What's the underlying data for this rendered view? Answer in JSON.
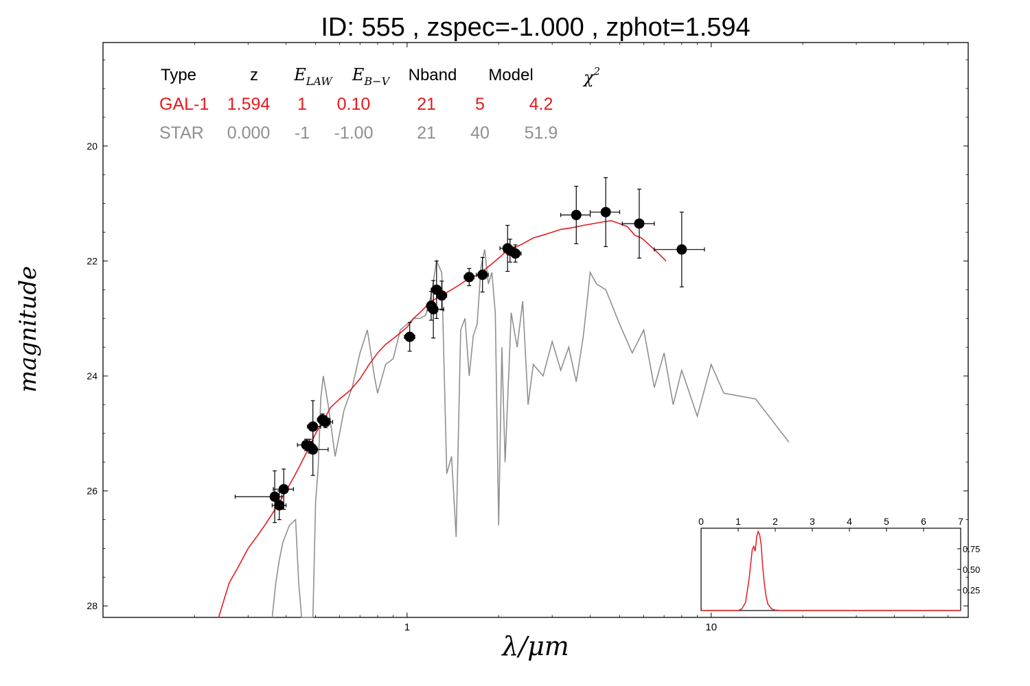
{
  "chart_data": [
    {
      "type": "scatter",
      "title": "ID:  555   , zspec=-1.000 , zphot=1.594",
      "xlabel": "λ/μm",
      "ylabel": "magnitude",
      "x_scale": "log",
      "y_inverted": true,
      "xlim": [
        0.1,
        70
      ],
      "ylim": [
        28.2,
        18.2
      ],
      "x_ticks": [
        1,
        10
      ],
      "x_tick_labels": [
        "1",
        "10"
      ],
      "y_ticks": [
        20,
        22,
        24,
        26,
        28
      ],
      "y_tick_labels": [
        "20",
        "22",
        "24",
        "26",
        "28"
      ],
      "colors": {
        "galaxy": "#e8181d",
        "star": "#8f8f8f",
        "points": "#000000"
      },
      "fit_table": {
        "header": [
          "Type",
          "z",
          "E_LAW",
          "E_B−V",
          "Nband",
          "Model",
          "χ²"
        ],
        "rows": [
          {
            "name": "galaxy",
            "values": [
              "GAL-1",
              "1.594",
              "1",
              "0.10",
              "21",
              "5",
              "4.2"
            ]
          },
          {
            "name": "star",
            "values": [
              "STAR",
              "0.000",
              "-1",
              "-1.00",
              "21",
              "40",
              "51.9"
            ]
          }
        ]
      },
      "photometry": [
        {
          "x": 0.367,
          "y": 26.1,
          "xerr": [
            0.095,
            0.02
          ],
          "yerr": [
            0.45,
            0.45
          ]
        },
        {
          "x": 0.38,
          "y": 26.25,
          "xerr": [
            0.02,
            0.02
          ],
          "yerr": [
            0.25,
            0.25
          ]
        },
        {
          "x": 0.393,
          "y": 25.97,
          "xerr": [
            0.03,
            0.03
          ],
          "yerr": [
            0.35,
            0.35
          ]
        },
        {
          "x": 0.466,
          "y": 25.2,
          "xerr": [
            0.03,
            0.02
          ],
          "yerr": [
            0.1,
            0.1
          ]
        },
        {
          "x": 0.478,
          "y": 25.22,
          "xerr": [
            0.02,
            0.02
          ],
          "yerr": [
            0.12,
            0.12
          ]
        },
        {
          "x": 0.49,
          "y": 25.28,
          "xerr": [
            0.02,
            0.06
          ],
          "yerr": [
            0.45,
            0.45
          ]
        },
        {
          "x": 0.49,
          "y": 24.88,
          "xerr": [
            0.02,
            0.03
          ],
          "yerr": [
            0.45,
            0.45
          ]
        },
        {
          "x": 0.527,
          "y": 24.76,
          "xerr": [
            0.02,
            0.03
          ],
          "yerr": [
            0.1,
            0.1
          ]
        },
        {
          "x": 0.539,
          "y": 24.8,
          "xerr": [
            0.02,
            0.03
          ],
          "yerr": [
            0.1,
            0.1
          ]
        },
        {
          "x": 1.02,
          "y": 23.32,
          "xerr": [
            0.04,
            0.04
          ],
          "yerr": [
            0.25,
            0.25
          ]
        },
        {
          "x": 1.2,
          "y": 22.78,
          "xerr": [
            0.03,
            0.03
          ],
          "yerr": [
            0.25,
            0.25
          ]
        },
        {
          "x": 1.22,
          "y": 22.84,
          "xerr": [
            0.05,
            0.1
          ],
          "yerr": [
            0.5,
            0.5
          ]
        },
        {
          "x": 1.25,
          "y": 22.5,
          "xerr": [
            0.05,
            0.05
          ],
          "yerr": [
            0.5,
            0.5
          ]
        },
        {
          "x": 1.3,
          "y": 22.6,
          "xerr": [
            0.05,
            0.05
          ],
          "yerr": [
            0.25,
            0.25
          ]
        },
        {
          "x": 1.6,
          "y": 22.28,
          "xerr": [
            0.06,
            0.06
          ],
          "yerr": [
            0.15,
            0.15
          ]
        },
        {
          "x": 1.77,
          "y": 22.24,
          "xerr": [
            0.08,
            0.08
          ],
          "yerr": [
            0.3,
            0.3
          ]
        },
        {
          "x": 2.14,
          "y": 21.78,
          "xerr": [
            0.12,
            0.12
          ],
          "yerr": [
            0.4,
            0.4
          ]
        },
        {
          "x": 2.18,
          "y": 21.82,
          "xerr": [
            0.1,
            0.1
          ],
          "yerr": [
            0.2,
            0.2
          ]
        },
        {
          "x": 2.27,
          "y": 21.87,
          "xerr": [
            0.1,
            0.1
          ],
          "yerr": [
            0.15,
            0.15
          ]
        },
        {
          "x": 3.6,
          "y": 21.2,
          "xerr": [
            0.4,
            0.4
          ],
          "yerr": [
            0.5,
            0.5
          ]
        },
        {
          "x": 4.5,
          "y": 21.15,
          "xerr": [
            0.5,
            0.5
          ],
          "yerr": [
            0.6,
            0.6
          ]
        },
        {
          "x": 5.8,
          "y": 21.35,
          "xerr": [
            0.7,
            0.7
          ],
          "yerr": [
            0.6,
            0.6
          ]
        },
        {
          "x": 8.0,
          "y": 21.8,
          "xerr": [
            1.5,
            1.5
          ],
          "yerr": [
            0.65,
            0.65
          ]
        }
      ],
      "series": [
        {
          "name": "GAL-1",
          "type": "line",
          "x": [
            0.24,
            0.26,
            0.28,
            0.3,
            0.32,
            0.34,
            0.36,
            0.38,
            0.4,
            0.42,
            0.44,
            0.46,
            0.48,
            0.5,
            0.52,
            0.54,
            0.56,
            0.6,
            0.65,
            0.7,
            0.75,
            0.8,
            0.85,
            0.9,
            0.95,
            1.0,
            1.05,
            1.1,
            1.15,
            1.2,
            1.3,
            1.4,
            1.5,
            1.6,
            1.7,
            1.8,
            1.9,
            2.0,
            2.1,
            2.2,
            2.4,
            2.6,
            2.8,
            3.0,
            3.2,
            3.5,
            3.8,
            4.1,
            4.4,
            4.7,
            5.0,
            5.3,
            5.6,
            5.9,
            6.2,
            6.5,
            6.8,
            7.1
          ],
          "y": [
            28.2,
            27.6,
            27.3,
            27.0,
            26.8,
            26.6,
            26.4,
            26.2,
            26.0,
            25.8,
            25.6,
            25.4,
            25.2,
            25.0,
            24.85,
            24.7,
            24.55,
            24.4,
            24.25,
            24.05,
            23.8,
            23.6,
            23.45,
            23.35,
            23.25,
            23.15,
            23.0,
            22.9,
            22.8,
            22.7,
            22.6,
            22.5,
            22.4,
            22.3,
            22.25,
            22.15,
            22.05,
            21.95,
            21.85,
            21.8,
            21.7,
            21.6,
            21.55,
            21.5,
            21.45,
            21.42,
            21.38,
            21.35,
            21.32,
            21.3,
            21.35,
            21.4,
            21.55,
            21.6,
            21.7,
            21.8,
            21.9,
            22.0
          ]
        },
        {
          "name": "STAR",
          "type": "line",
          "x": [
            0.36,
            0.37,
            0.38,
            0.39,
            0.4,
            0.41,
            0.42,
            0.43,
            0.44,
            0.45,
            0.47,
            0.49,
            0.5,
            0.51,
            0.52,
            0.53,
            0.55,
            0.58,
            0.62,
            0.66,
            0.7,
            0.74,
            0.78,
            0.8,
            0.85,
            0.9,
            0.95,
            1.0,
            1.05,
            1.1,
            1.15,
            1.2,
            1.25,
            1.3,
            1.35,
            1.4,
            1.45,
            1.5,
            1.55,
            1.6,
            1.65,
            1.7,
            1.75,
            1.8,
            1.85,
            1.9,
            1.95,
            2.0,
            2.05,
            2.1,
            2.2,
            2.3,
            2.4,
            2.5,
            2.6,
            2.8,
            3.0,
            3.2,
            3.4,
            3.6,
            3.8,
            4.0,
            4.2,
            4.5,
            5.0,
            5.5,
            6.0,
            6.5,
            7.0,
            7.5,
            8.0,
            9.0,
            10.0,
            11.0,
            14.0,
            18.0
          ],
          "y": [
            28.2,
            27.6,
            27.2,
            26.9,
            26.75,
            26.6,
            26.55,
            26.5,
            27.6,
            28.2,
            28.2,
            28.2,
            26.2,
            25.6,
            24.4,
            24.0,
            24.5,
            25.4,
            24.6,
            24.2,
            23.6,
            23.2,
            24.0,
            24.3,
            23.8,
            23.7,
            23.2,
            23.1,
            23.0,
            23.0,
            22.95,
            22.6,
            22.0,
            22.2,
            25.7,
            25.4,
            26.8,
            23.2,
            23.0,
            24.0,
            23.3,
            23.1,
            22.1,
            21.8,
            22.4,
            22.2,
            22.9,
            26.6,
            23.5,
            25.5,
            22.9,
            23.5,
            22.7,
            24.5,
            23.8,
            24.0,
            23.4,
            23.9,
            23.5,
            24.1,
            23.3,
            22.2,
            22.4,
            22.5,
            23.1,
            23.6,
            23.2,
            24.2,
            23.6,
            24.5,
            23.9,
            24.7,
            23.8,
            24.3,
            24.4,
            25.15
          ]
        }
      ]
    },
    {
      "type": "line",
      "title": "",
      "xlim": [
        0,
        7
      ],
      "ylim": [
        0,
        1
      ],
      "x_ticks": [
        0,
        1,
        2,
        3,
        4,
        5,
        6,
        7
      ],
      "x_tick_labels": [
        "0",
        "1",
        "2",
        "3",
        "4",
        "5",
        "6",
        "7"
      ],
      "y_ticks": [
        0.25,
        0.5,
        0.75
      ],
      "y_tick_labels": [
        "0.25",
        "0.50",
        "0.75"
      ],
      "color": "#e8181d",
      "series": [
        {
          "x": [
            0,
            1.0,
            1.1,
            1.2,
            1.3,
            1.38,
            1.42,
            1.46,
            1.5,
            1.54,
            1.58,
            1.62,
            1.66,
            1.7,
            1.75,
            1.8,
            1.9,
            2.0,
            2.2,
            7.0
          ],
          "y": [
            0,
            0,
            0.02,
            0.1,
            0.4,
            0.74,
            0.78,
            0.72,
            0.9,
            0.96,
            0.92,
            0.8,
            0.55,
            0.35,
            0.18,
            0.08,
            0.02,
            0.005,
            0,
            0
          ]
        }
      ]
    }
  ]
}
